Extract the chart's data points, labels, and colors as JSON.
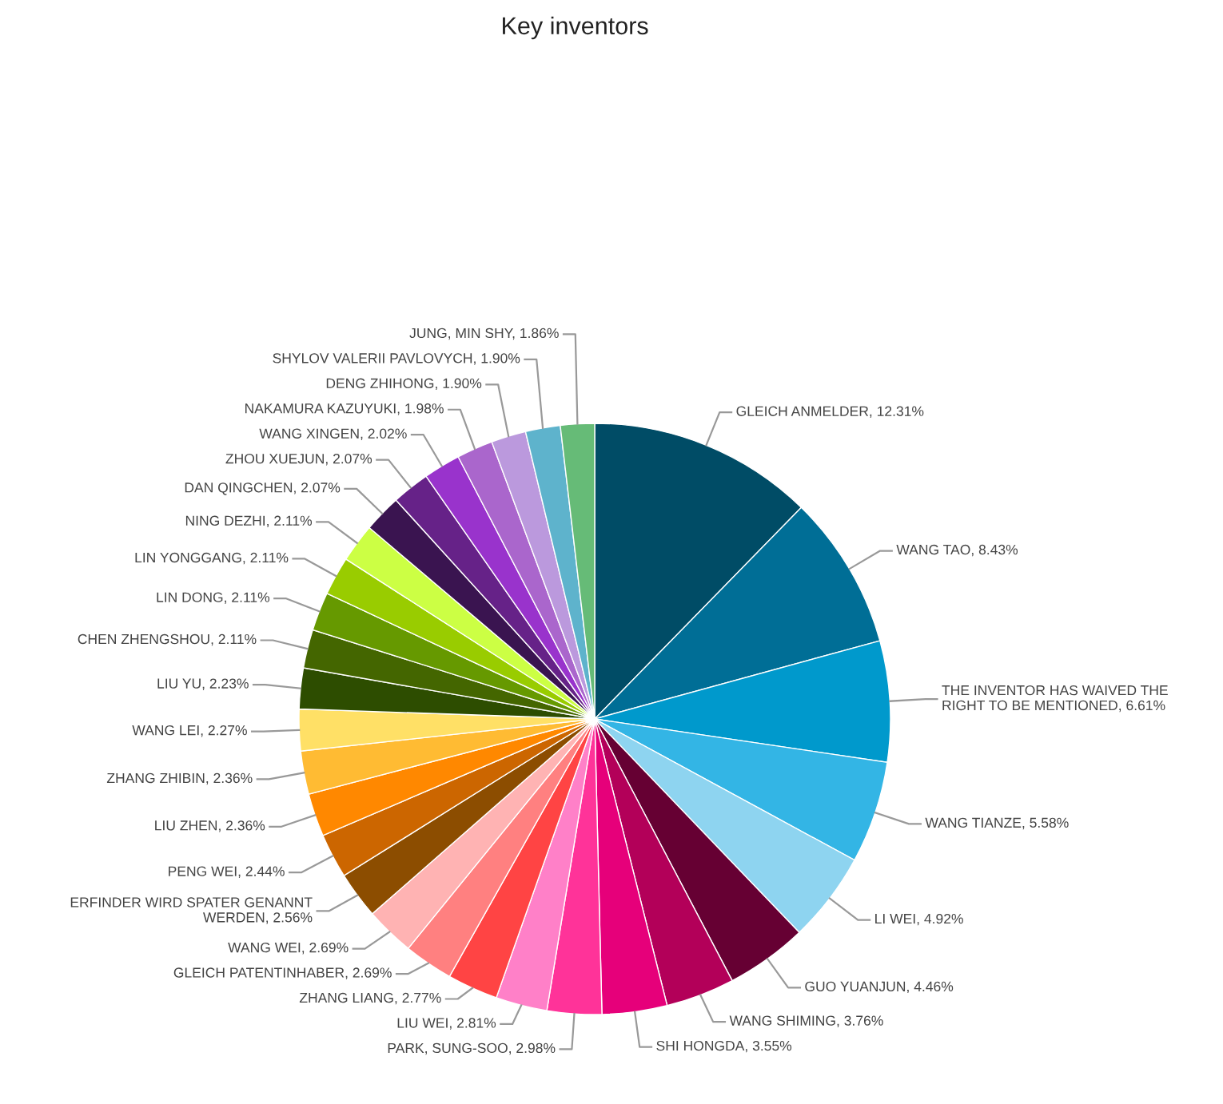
{
  "chart_data": {
    "type": "pie",
    "title": "Key inventors",
    "value_labels": [
      "12.31%",
      "8.43%",
      "6.61%",
      "5.58%",
      "4.92%",
      "4.46%",
      "3.76%",
      "3.55%",
      "2.98%",
      "2.81%",
      "2.77%",
      "2.69%",
      "2.69%",
      "2.56%",
      "2.44%",
      "2.36%",
      "2.36%",
      "2.27%",
      "2.23%",
      "2.11%",
      "2.11%",
      "2.11%",
      "2.11%",
      "2.07%",
      "2.07%",
      "2.02%",
      "1.98%",
      "1.90%",
      "1.90%",
      "1.86%"
    ],
    "categories": [
      "GLEICH ANMELDER",
      "WANG TAO",
      "THE INVENTOR HAS WAIVED THE RIGHT TO BE MENTIONED",
      "WANG TIANZE",
      "LI WEI",
      "GUO YUANJUN",
      "WANG SHIMING",
      "SHI HONGDA",
      "PARK, SUNG-SOO",
      "LIU WEI",
      "ZHANG LIANG",
      "GLEICH PATENTINHABER",
      "WANG WEI",
      "ERFINDER WIRD SPATER GENANNT WERDEN",
      "PENG WEI",
      "LIU ZHEN",
      "ZHANG ZHIBIN",
      "WANG LEI",
      "LIU YU",
      "CHEN ZHENGSHOU",
      "LIN DONG",
      "LIN YONGGANG",
      "NING DEZHI",
      "DAN QINGCHEN",
      "ZHOU XUEJUN",
      "WANG XINGEN",
      "NAKAMURA KAZUYUKI",
      "DENG ZHIHONG",
      "SHYLOV VALERII PAVLOVYCH",
      "JUNG, MIN SHY"
    ],
    "values": [
      12.31,
      8.43,
      6.61,
      5.58,
      4.92,
      4.46,
      3.76,
      3.55,
      2.98,
      2.81,
      2.77,
      2.69,
      2.69,
      2.56,
      2.44,
      2.36,
      2.36,
      2.27,
      2.23,
      2.11,
      2.11,
      2.11,
      2.11,
      2.07,
      2.07,
      2.02,
      1.98,
      1.9,
      1.9,
      1.86
    ],
    "colors": [
      "#004c66",
      "#006e96",
      "#0099cc",
      "#33b5e5",
      "#8ed4f0",
      "#660033",
      "#b30059",
      "#e6007a",
      "#ff3399",
      "#ff80c8",
      "#ff4444",
      "#ff8080",
      "#ffb3b3",
      "#8c4d00",
      "#cc6600",
      "#ff8800",
      "#ffbb33",
      "#ffe066",
      "#2d4d00",
      "#446600",
      "#669900",
      "#99cc00",
      "#ccff44",
      "#3a1450",
      "#662288",
      "#9933cc",
      "#aa66cc",
      "#bb99dd",
      "#5eb3cc",
      "#66bb77"
    ]
  }
}
